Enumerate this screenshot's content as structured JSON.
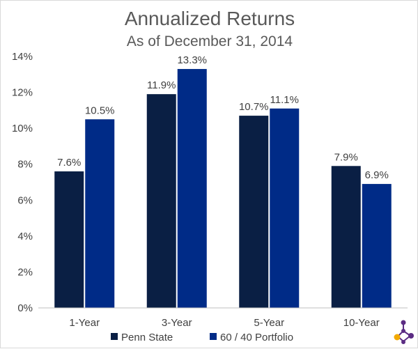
{
  "chart_data": {
    "type": "bar",
    "title": "Annualized Returns",
    "subtitle": "As of December 31, 2014",
    "categories": [
      "1-Year",
      "3-Year",
      "5-Year",
      "10-Year"
    ],
    "series": [
      {
        "name": "Penn State",
        "color": "#0a1f44",
        "values": [
          7.6,
          11.9,
          10.7,
          7.9
        ],
        "labels": [
          "7.6%",
          "11.9%",
          "10.7%",
          "7.9%"
        ]
      },
      {
        "name": "60 / 40 Portfolio",
        "color": "#002b87",
        "values": [
          10.5,
          13.3,
          11.1,
          6.9
        ],
        "labels": [
          "10.5%",
          "13.3%",
          "11.1%",
          "6.9%"
        ]
      }
    ],
    "ylim": [
      0,
      14
    ],
    "yticks": [
      0,
      2,
      4,
      6,
      8,
      10,
      12,
      14
    ],
    "ytick_labels": [
      "0%",
      "2%",
      "4%",
      "6%",
      "8%",
      "10%",
      "12%",
      "14%"
    ],
    "grid": false,
    "legend_position": "bottom",
    "xlabel": "",
    "ylabel": ""
  },
  "logo": {
    "icon": "molecule-logo-icon",
    "colors": [
      "#5b2c83",
      "#f2a900"
    ]
  }
}
